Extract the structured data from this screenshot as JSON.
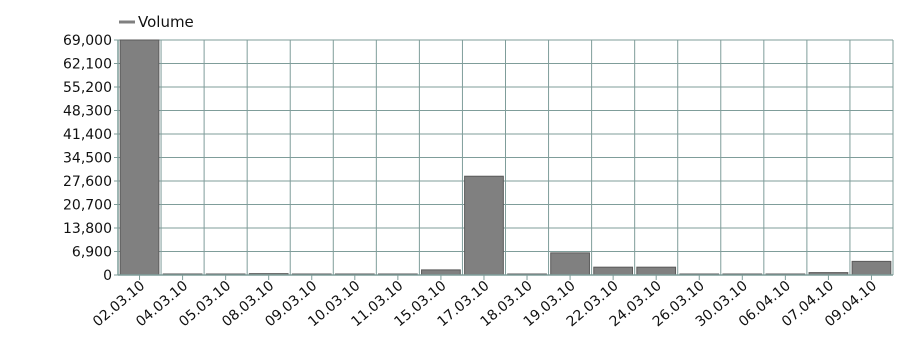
{
  "chart_data": {
    "type": "bar",
    "legend": {
      "label": "Volume",
      "position": "top-left"
    },
    "categories": [
      "02.03.10",
      "04.03.10",
      "05.03.10",
      "08.03.10",
      "09.03.10",
      "10.03.10",
      "11.03.10",
      "15.03.10",
      "17.03.10",
      "18.03.10",
      "19.03.10",
      "22.03.10",
      "24.03.10",
      "26.03.10",
      "30.03.10",
      "06.04.10",
      "07.04.10",
      "09.04.10"
    ],
    "series": [
      {
        "name": "Volume",
        "values": [
          69000,
          300,
          200,
          400,
          200,
          200,
          200,
          1500,
          29000,
          100,
          6500,
          2300,
          2300,
          200,
          200,
          200,
          700,
          4000
        ]
      }
    ],
    "yticks": [
      0,
      6900,
      13800,
      20700,
      27600,
      34500,
      41400,
      48300,
      55200,
      62100,
      69000
    ],
    "ytick_labels": [
      "0",
      "6,900",
      "13,800",
      "20,700",
      "27,600",
      "34,500",
      "41,400",
      "48,300",
      "55,200",
      "62,100",
      "69,000"
    ],
    "ylim": [
      0,
      69000
    ],
    "grid": true,
    "colors": {
      "bar_fill": "#808080",
      "bar_stroke": "#5a5a5a",
      "grid": "#7f9d9a",
      "axis": "#7f9d9a"
    }
  }
}
